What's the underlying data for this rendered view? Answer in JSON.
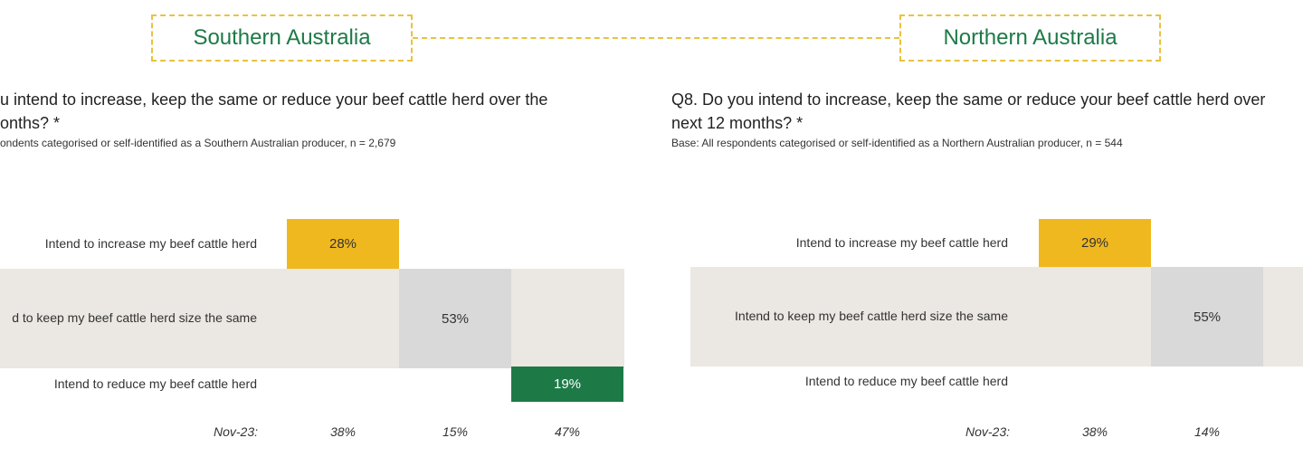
{
  "colors": {
    "increase": "#f0b81f",
    "same": "#d9d9d9",
    "reduce": "#1d7a47",
    "band": "#ebe7e2",
    "accent_border": "#e9c23f"
  },
  "southern": {
    "region_label": "Southern Australia",
    "question_line1": "u intend to increase, keep the same or reduce your beef cattle herd over the",
    "question_line2": "onths? *",
    "base": "ondents categorised or self-identified as a Southern Australian producer, n = 2,679"
  },
  "northern": {
    "region_label": "Northern Australia",
    "question_line1": "Q8. Do you intend to increase, keep the same or reduce your beef cattle herd over",
    "question_line2": "next 12 months? *",
    "base": "Base: All respondents categorised or self-identified as a Northern Australian producer, n = 544"
  },
  "chart_data": [
    {
      "type": "bar",
      "categories": [
        "Intend to increase my beef cattle herd",
        "d to keep my beef cattle herd size the same",
        "Intend to reduce my beef cattle herd"
      ],
      "values": [
        28,
        53,
        19
      ],
      "value_labels": [
        "28%",
        "53%",
        "19%"
      ],
      "comparison_label": "Nov-23:",
      "comparison_values": [
        "38%",
        "15%",
        "47%"
      ]
    },
    {
      "type": "bar",
      "categories": [
        "Intend to increase my beef cattle herd",
        "Intend to keep my beef cattle herd size the same",
        "Intend to reduce my beef cattle herd"
      ],
      "values": [
        29,
        55,
        null
      ],
      "value_labels": [
        "29%",
        "55%",
        ""
      ],
      "comparison_label": "Nov-23:",
      "comparison_values": [
        "38%",
        "14%"
      ]
    }
  ]
}
